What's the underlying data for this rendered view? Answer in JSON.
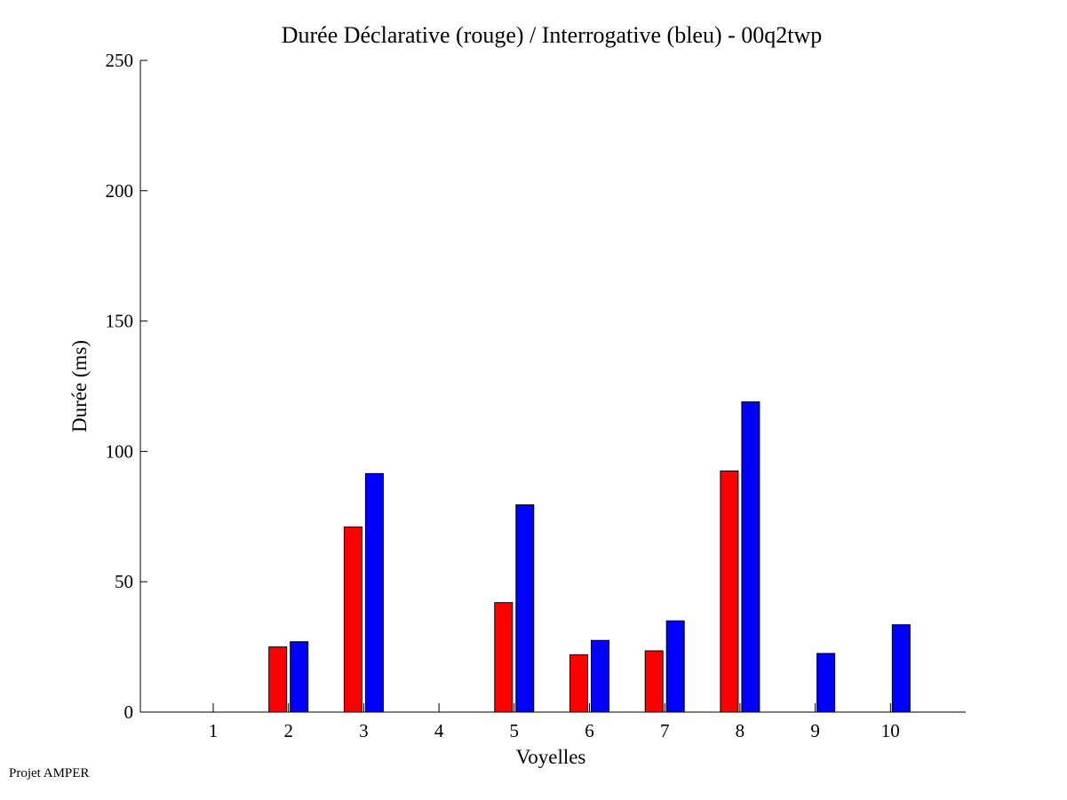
{
  "chart_data": {
    "type": "bar",
    "title": "Durée Déclarative (rouge) / Interrogative (bleu) - 00q2twp",
    "xlabel": "Voyelles",
    "ylabel": "Durée (ms)",
    "categories": [
      "1",
      "2",
      "3",
      "4",
      "5",
      "6",
      "7",
      "8",
      "9",
      "10"
    ],
    "ylim": [
      0,
      250
    ],
    "yticks": [
      0,
      50,
      100,
      150,
      200,
      250
    ],
    "grid": false,
    "legend": "none",
    "series": [
      {
        "color": "#ff0000",
        "values": [
          0,
          25,
          71,
          0,
          42,
          22,
          23.5,
          92.5,
          0,
          0
        ]
      },
      {
        "color": "#0000ff",
        "values": [
          0,
          27,
          91.5,
          0,
          79.5,
          27.5,
          35,
          119,
          22.5,
          33.5
        ]
      }
    ]
  },
  "footer": {
    "note": "Projet AMPER"
  }
}
